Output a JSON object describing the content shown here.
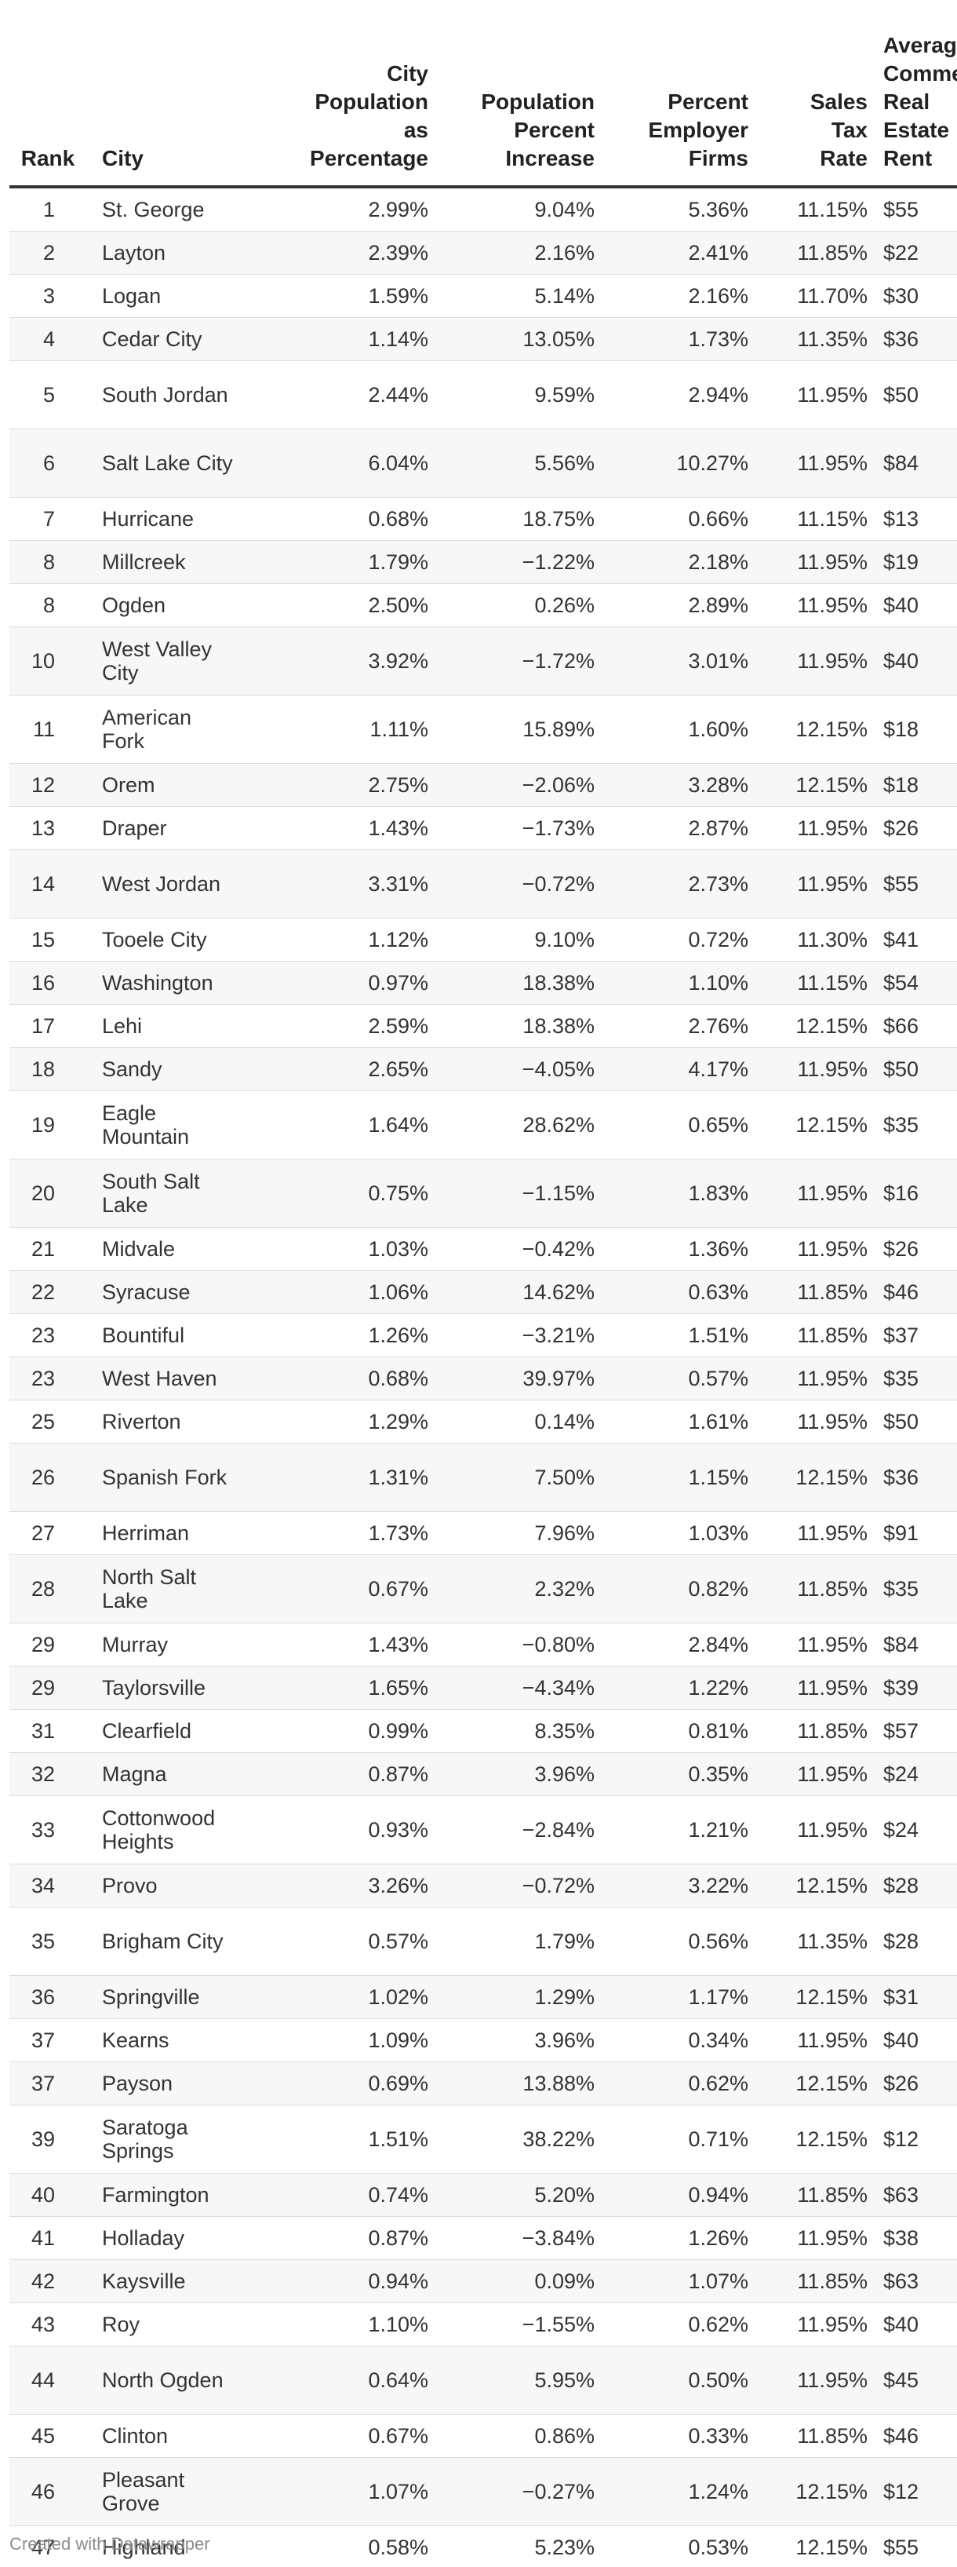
{
  "table": {
    "headers": {
      "rank": "Rank",
      "city": "City",
      "population_pct": "City\nPopulation\nas\nPercentage",
      "population_increase": "Population\nPercent\nIncrease",
      "employer_firms": "Percent\nEmployer\nFirms",
      "sales_tax": "Sales\nTax\nRate",
      "rent": "Average\nCommercial\nReal Estate\nRent"
    },
    "rows": [
      {
        "rank": "1",
        "city": "St. George",
        "pop": "2.99%",
        "inc": "9.04%",
        "emp": "5.36%",
        "tax": "11.15%",
        "rent": "$55"
      },
      {
        "rank": "2",
        "city": "Layton",
        "pop": "2.39%",
        "inc": "2.16%",
        "emp": "2.41%",
        "tax": "11.85%",
        "rent": "$22"
      },
      {
        "rank": "3",
        "city": "Logan",
        "pop": "1.59%",
        "inc": "5.14%",
        "emp": "2.16%",
        "tax": "11.70%",
        "rent": "$30"
      },
      {
        "rank": "4",
        "city": "Cedar City",
        "pop": "1.14%",
        "inc": "13.05%",
        "emp": "1.73%",
        "tax": "11.35%",
        "rent": "$36"
      },
      {
        "rank": "5",
        "city": "South Jordan",
        "pop": "2.44%",
        "inc": "9.59%",
        "emp": "2.94%",
        "tax": "11.95%",
        "rent": "$50"
      },
      {
        "rank": "6",
        "city": "Salt Lake City",
        "pop": "6.04%",
        "inc": "5.56%",
        "emp": "10.27%",
        "tax": "11.95%",
        "rent": "$84"
      },
      {
        "rank": "7",
        "city": "Hurricane",
        "pop": "0.68%",
        "inc": "18.75%",
        "emp": "0.66%",
        "tax": "11.15%",
        "rent": "$13"
      },
      {
        "rank": "8",
        "city": "Millcreek",
        "pop": "1.79%",
        "inc": "−1.22%",
        "emp": "2.18%",
        "tax": "11.95%",
        "rent": "$19"
      },
      {
        "rank": "8",
        "city": "Ogden",
        "pop": "2.50%",
        "inc": "0.26%",
        "emp": "2.89%",
        "tax": "11.95%",
        "rent": "$40"
      },
      {
        "rank": "10",
        "city": "West Valley City",
        "pop": "3.92%",
        "inc": "−1.72%",
        "emp": "3.01%",
        "tax": "11.95%",
        "rent": "$40"
      },
      {
        "rank": "11",
        "city": "American Fork",
        "pop": "1.11%",
        "inc": "15.89%",
        "emp": "1.60%",
        "tax": "12.15%",
        "rent": "$18"
      },
      {
        "rank": "12",
        "city": "Orem",
        "pop": "2.75%",
        "inc": "−2.06%",
        "emp": "3.28%",
        "tax": "12.15%",
        "rent": "$18"
      },
      {
        "rank": "13",
        "city": "Draper",
        "pop": "1.43%",
        "inc": "−1.73%",
        "emp": "2.87%",
        "tax": "11.95%",
        "rent": "$26"
      },
      {
        "rank": "14",
        "city": "West Jordan",
        "pop": "3.31%",
        "inc": "−0.72%",
        "emp": "2.73%",
        "tax": "11.95%",
        "rent": "$55"
      },
      {
        "rank": "15",
        "city": "Tooele City",
        "pop": "1.12%",
        "inc": "9.10%",
        "emp": "0.72%",
        "tax": "11.30%",
        "rent": "$41"
      },
      {
        "rank": "16",
        "city": "Washington",
        "pop": "0.97%",
        "inc": "18.38%",
        "emp": "1.10%",
        "tax": "11.15%",
        "rent": "$54"
      },
      {
        "rank": "17",
        "city": "Lehi",
        "pop": "2.59%",
        "inc": "18.38%",
        "emp": "2.76%",
        "tax": "12.15%",
        "rent": "$66"
      },
      {
        "rank": "18",
        "city": "Sandy",
        "pop": "2.65%",
        "inc": "−4.05%",
        "emp": "4.17%",
        "tax": "11.95%",
        "rent": "$50"
      },
      {
        "rank": "19",
        "city": "Eagle Mountain",
        "pop": "1.64%",
        "inc": "28.62%",
        "emp": "0.65%",
        "tax": "12.15%",
        "rent": "$35"
      },
      {
        "rank": "20",
        "city": "South Salt Lake",
        "pop": "0.75%",
        "inc": "−1.15%",
        "emp": "1.83%",
        "tax": "11.95%",
        "rent": "$16"
      },
      {
        "rank": "21",
        "city": "Midvale",
        "pop": "1.03%",
        "inc": "−0.42%",
        "emp": "1.36%",
        "tax": "11.95%",
        "rent": "$26"
      },
      {
        "rank": "22",
        "city": "Syracuse",
        "pop": "1.06%",
        "inc": "14.62%",
        "emp": "0.63%",
        "tax": "11.85%",
        "rent": "$46"
      },
      {
        "rank": "23",
        "city": "Bountiful",
        "pop": "1.26%",
        "inc": "−3.21%",
        "emp": "1.51%",
        "tax": "11.85%",
        "rent": "$37"
      },
      {
        "rank": "23",
        "city": "West Haven",
        "pop": "0.68%",
        "inc": "39.97%",
        "emp": "0.57%",
        "tax": "11.95%",
        "rent": "$35"
      },
      {
        "rank": "25",
        "city": "Riverton",
        "pop": "1.29%",
        "inc": "0.14%",
        "emp": "1.61%",
        "tax": "11.95%",
        "rent": "$50"
      },
      {
        "rank": "26",
        "city": "Spanish Fork",
        "pop": "1.31%",
        "inc": "7.50%",
        "emp": "1.15%",
        "tax": "12.15%",
        "rent": "$36"
      },
      {
        "rank": "27",
        "city": "Herriman",
        "pop": "1.73%",
        "inc": "7.96%",
        "emp": "1.03%",
        "tax": "11.95%",
        "rent": "$91"
      },
      {
        "rank": "28",
        "city": "North Salt Lake",
        "pop": "0.67%",
        "inc": "2.32%",
        "emp": "0.82%",
        "tax": "11.85%",
        "rent": "$35"
      },
      {
        "rank": "29",
        "city": "Murray",
        "pop": "1.43%",
        "inc": "−0.80%",
        "emp": "2.84%",
        "tax": "11.95%",
        "rent": "$84"
      },
      {
        "rank": "29",
        "city": "Taylorsville",
        "pop": "1.65%",
        "inc": "−4.34%",
        "emp": "1.22%",
        "tax": "11.95%",
        "rent": "$39"
      },
      {
        "rank": "31",
        "city": "Clearfield",
        "pop": "0.99%",
        "inc": "8.35%",
        "emp": "0.81%",
        "tax": "11.85%",
        "rent": "$57"
      },
      {
        "rank": "32",
        "city": "Magna",
        "pop": "0.87%",
        "inc": "3.96%",
        "emp": "0.35%",
        "tax": "11.95%",
        "rent": "$24"
      },
      {
        "rank": "33",
        "city": "Cottonwood Heights",
        "pop": "0.93%",
        "inc": "−2.84%",
        "emp": "1.21%",
        "tax": "11.95%",
        "rent": "$24"
      },
      {
        "rank": "34",
        "city": "Provo",
        "pop": "3.26%",
        "inc": "−0.72%",
        "emp": "3.22%",
        "tax": "12.15%",
        "rent": "$28"
      },
      {
        "rank": "35",
        "city": "Brigham City",
        "pop": "0.57%",
        "inc": "1.79%",
        "emp": "0.56%",
        "tax": "11.35%",
        "rent": "$28"
      },
      {
        "rank": "36",
        "city": "Springville",
        "pop": "1.02%",
        "inc": "1.29%",
        "emp": "1.17%",
        "tax": "12.15%",
        "rent": "$31"
      },
      {
        "rank": "37",
        "city": "Kearns",
        "pop": "1.09%",
        "inc": "3.96%",
        "emp": "0.34%",
        "tax": "11.95%",
        "rent": "$40"
      },
      {
        "rank": "37",
        "city": "Payson",
        "pop": "0.69%",
        "inc": "13.88%",
        "emp": "0.62%",
        "tax": "12.15%",
        "rent": "$26"
      },
      {
        "rank": "39",
        "city": "Saratoga Springs",
        "pop": "1.51%",
        "inc": "38.22%",
        "emp": "0.71%",
        "tax": "12.15%",
        "rent": "$12"
      },
      {
        "rank": "40",
        "city": "Farmington",
        "pop": "0.74%",
        "inc": "5.20%",
        "emp": "0.94%",
        "tax": "11.85%",
        "rent": "$63"
      },
      {
        "rank": "41",
        "city": "Holladay",
        "pop": "0.87%",
        "inc": "−3.84%",
        "emp": "1.26%",
        "tax": "11.95%",
        "rent": "$38"
      },
      {
        "rank": "42",
        "city": "Kaysville",
        "pop": "0.94%",
        "inc": "0.09%",
        "emp": "1.07%",
        "tax": "11.85%",
        "rent": "$63"
      },
      {
        "rank": "43",
        "city": "Roy",
        "pop": "1.10%",
        "inc": "−1.55%",
        "emp": "0.62%",
        "tax": "11.95%",
        "rent": "$40"
      },
      {
        "rank": "44",
        "city": "North Ogden",
        "pop": "0.64%",
        "inc": "5.95%",
        "emp": "0.50%",
        "tax": "11.95%",
        "rent": "$45"
      },
      {
        "rank": "45",
        "city": "Clinton",
        "pop": "0.67%",
        "inc": "0.86%",
        "emp": "0.33%",
        "tax": "11.85%",
        "rent": "$46"
      },
      {
        "rank": "46",
        "city": "Pleasant Grove",
        "pop": "1.07%",
        "inc": "−0.27%",
        "emp": "1.24%",
        "tax": "12.15%",
        "rent": "$12"
      },
      {
        "rank": "47",
        "city": "Highland",
        "pop": "0.58%",
        "inc": "5.23%",
        "emp": "0.53%",
        "tax": "12.15%",
        "rent": "$55"
      }
    ]
  },
  "footer": {
    "credit": "Created with Datawrapper"
  }
}
